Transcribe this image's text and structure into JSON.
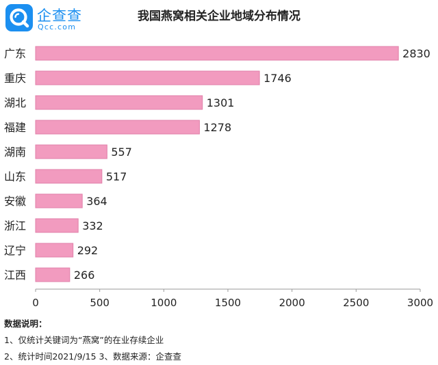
{
  "logo": {
    "brand": "企查查",
    "domain": "Qcc.com",
    "icon": "qcc-magnifier-logo",
    "color": "#1b8ff0"
  },
  "chart_data": {
    "type": "bar",
    "orientation": "horizontal",
    "title": "我国燕窝相关企业地域分布情况",
    "categories": [
      "广东",
      "重庆",
      "湖北",
      "福建",
      "湖南",
      "山东",
      "安徽",
      "浙江",
      "辽宁",
      "江西"
    ],
    "values": [
      2830,
      1746,
      1301,
      1278,
      557,
      517,
      364,
      332,
      292,
      266
    ],
    "xlim": [
      0,
      3000
    ],
    "xticks": [
      0,
      500,
      1000,
      1500,
      2000,
      2500,
      3000
    ],
    "data_labels": true,
    "grid": false,
    "bar_color": "#f29bbf",
    "bar_border_color": "#e07fa8"
  },
  "notes": {
    "heading": "数据说明：",
    "line1": "1、仅统计关键词为“燕窝”的在业存续企业",
    "line2": "2、统计时间2021/9/15   3、数据来源：企查查"
  }
}
